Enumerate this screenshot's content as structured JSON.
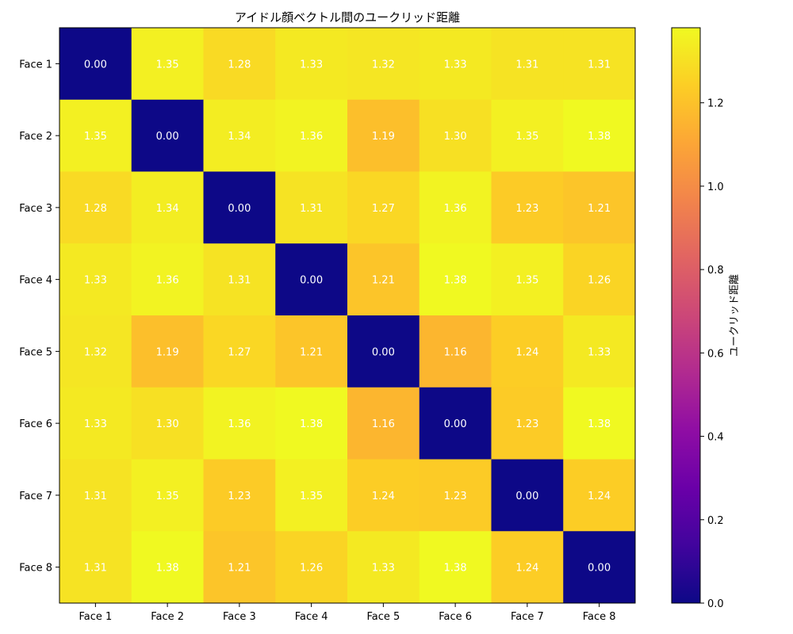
{
  "chart_data": {
    "type": "heatmap",
    "title": "アイドル顔ベクトル間のユークリッド距離",
    "x_categories": [
      "Face 1",
      "Face 2",
      "Face 3",
      "Face 4",
      "Face 5",
      "Face 6",
      "Face 7",
      "Face 8"
    ],
    "y_categories": [
      "Face 1",
      "Face 2",
      "Face 3",
      "Face 4",
      "Face 5",
      "Face 6",
      "Face 7",
      "Face 8"
    ],
    "values": [
      [
        0.0,
        1.35,
        1.28,
        1.33,
        1.32,
        1.33,
        1.31,
        1.31
      ],
      [
        1.35,
        0.0,
        1.34,
        1.36,
        1.19,
        1.3,
        1.35,
        1.38
      ],
      [
        1.28,
        1.34,
        0.0,
        1.31,
        1.27,
        1.36,
        1.23,
        1.21
      ],
      [
        1.33,
        1.36,
        1.31,
        0.0,
        1.21,
        1.38,
        1.35,
        1.26
      ],
      [
        1.32,
        1.19,
        1.27,
        1.21,
        0.0,
        1.16,
        1.24,
        1.33
      ],
      [
        1.33,
        1.3,
        1.36,
        1.38,
        1.16,
        0.0,
        1.23,
        1.38
      ],
      [
        1.31,
        1.35,
        1.23,
        1.35,
        1.24,
        1.23,
        0.0,
        1.24
      ],
      [
        1.31,
        1.38,
        1.21,
        1.26,
        1.33,
        1.38,
        1.24,
        0.0
      ]
    ],
    "colormap": "plasma",
    "value_range": [
      0.0,
      1.38
    ],
    "colorbar": {
      "label": "ユークリッド距離",
      "ticks": [
        0.0,
        0.2,
        0.4,
        0.6,
        0.8,
        1.0,
        1.2
      ],
      "tick_labels": [
        "0.0",
        "0.2",
        "0.4",
        "0.6",
        "0.8",
        "1.0",
        "1.2"
      ]
    },
    "grid": false
  }
}
